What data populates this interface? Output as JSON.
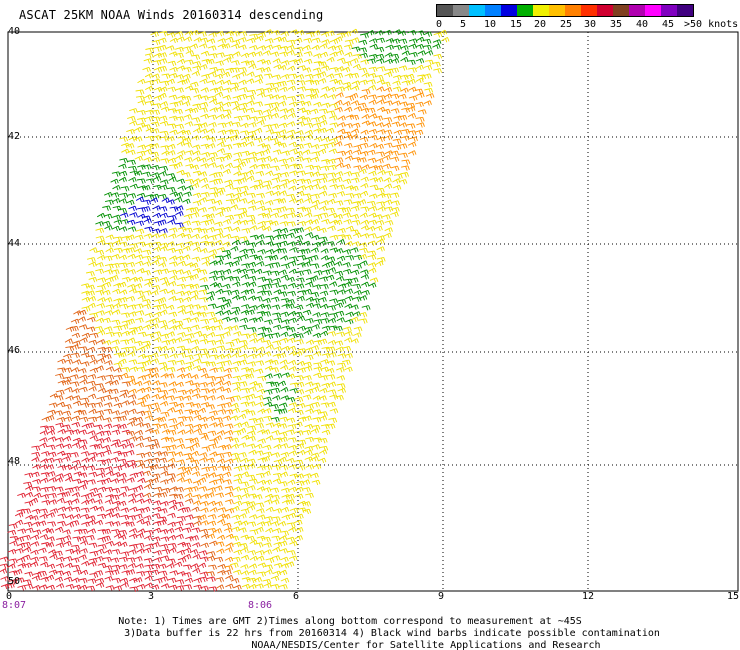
{
  "title": "ASCAT 25KM NOAA Winds 20160314 descending",
  "scale": {
    "colors": [
      "#555555",
      "#888888",
      "#00c0ff",
      "#0080ff",
      "#0000e0",
      "#00b000",
      "#f0f000",
      "#ffc000",
      "#ff8000",
      "#ff3000",
      "#d00030",
      "#804020",
      "#b000b0",
      "#ff00ff",
      "#8000c0",
      "#400080"
    ],
    "labels": [
      "0",
      "5",
      "10",
      "15",
      "20",
      "25",
      "30",
      "35",
      "40",
      "45",
      ">50 knots"
    ]
  },
  "axes": {
    "y_labels": [
      "40",
      "42",
      "44",
      "46",
      "48",
      "50"
    ],
    "x_labels": [
      "0",
      "3",
      "6",
      "9",
      "12",
      "15"
    ],
    "time_labels": [
      "8:07",
      "8:06"
    ]
  },
  "note": {
    "line1": "Note: 1) Times are GMT 2)Times along bottom correspond to measurement at ~45S",
    "line2": "3)Data buffer is 22 hrs from 20160314 4) Black wind barbs indicate possible contamination",
    "line3": "NOAA/NESDIS/Center for Satellite Applications and Research"
  },
  "map_data": {
    "lat_range": [
      -50,
      -40
    ],
    "lon_range": [
      0,
      15
    ],
    "colors": {
      "yellow": "#f0e000",
      "orange": "#ff9000",
      "darkorange": "#e06010",
      "red": "#e02030",
      "green": "#009000",
      "blue": "#0000d0"
    }
  }
}
